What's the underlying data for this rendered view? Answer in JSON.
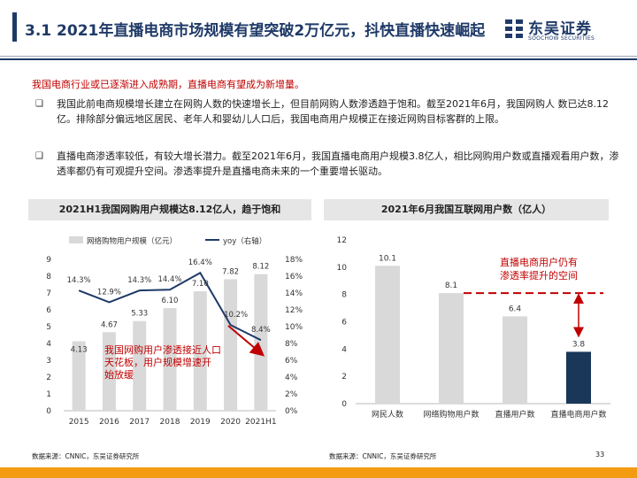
{
  "header": {
    "title": "3.1 2021年直播电商市场规模有望突破2万亿元，抖快直播快速崛起",
    "logo_cn": "东吴证券",
    "logo_en": "SOOCHOW SECURITIES"
  },
  "intro": "我国电商行业或已逐渐进入成熟期，直播电商有望成为新增量。",
  "bullets": [
    {
      "mark": "❑",
      "text": "我国此前电商规模增长建立在网购人数的快速增长上，但目前网购人数渗透趋于饱和。截至2021年6月，我国网购人 数已达8.12亿。排除部分偏远地区居民、老年人和婴幼儿人口后，我国电商用户规模正在接近网购目标客群的上限。"
    },
    {
      "mark": "❑",
      "text": "直播电商渗透率较低，有较大增长潜力。截至2021年6月，我国直播电商用户规模3.8亿人，相比网购用户数或直播观看用户数，渗透率都仍有可观提升空间。渗透率提升是直播电商未来的一个重要增长驱动。"
    }
  ],
  "left_panel": {
    "heading": "2021H1我国网购用户规模达8.12亿人，趋于饱和",
    "source": "数据来源：CNNIC，东吴证券研究所"
  },
  "right_panel": {
    "heading": "2021年6月我国互联网用户数（亿人）",
    "source": "数据来源：CNNIC，东吴证券研究所"
  },
  "page_number": "33",
  "colors": {
    "navy": "#1f3a68",
    "bar_gray": "#d9d9d9",
    "red": "#c00000",
    "orange": "#f39c12",
    "dark_bar": "#1a3658"
  },
  "chart_data": [
    {
      "type": "bar+line",
      "categories": [
        "2015",
        "2016",
        "2017",
        "2018",
        "2019",
        "2020",
        "2021H1"
      ],
      "series": [
        {
          "name": "网络购物用户规模（亿元）",
          "type": "bar",
          "axis": "left",
          "values": [
            4.13,
            4.67,
            5.33,
            6.1,
            7.1,
            7.82,
            8.12
          ],
          "labels": [
            "4.13",
            "4.67",
            "5.33",
            "6.10",
            "7.10",
            "7.82",
            "8.12"
          ]
        },
        {
          "name": "yoy（右轴）",
          "type": "line",
          "axis": "right",
          "values": [
            14.3,
            12.9,
            14.3,
            14.4,
            16.4,
            10.2,
            8.4
          ],
          "labels": [
            "14.3%",
            "12.9%",
            "14.3%",
            "14.4%",
            "16.4%",
            "10.2%",
            "8.4%"
          ]
        }
      ],
      "yleft": {
        "min": 0,
        "max": 9,
        "ticks": [
          "0",
          "1",
          "2",
          "3",
          "4",
          "5",
          "6",
          "7",
          "8",
          "9"
        ]
      },
      "yright": {
        "min": 0,
        "max": 18,
        "ticks": [
          "0%",
          "2%",
          "4%",
          "6%",
          "8%",
          "10%",
          "12%",
          "14%",
          "16%",
          "18%"
        ]
      },
      "annotation": "我国网购用户渗透接近人口天花板，用户规模增速开始放缓",
      "legend": "top-left"
    },
    {
      "type": "bar",
      "categories": [
        "网民人数",
        "网络购物用户数",
        "直播用户数",
        "直播电商用户数"
      ],
      "values": [
        10.1,
        8.1,
        6.4,
        3.8
      ],
      "labels": [
        "10.1",
        "8.1",
        "6.4",
        "3.8"
      ],
      "ylim": [
        0,
        12
      ],
      "yticks": [
        "0",
        "2",
        "4",
        "6",
        "8",
        "10",
        "12"
      ],
      "annotation": "直播电商用户仍有渗透率提升的空间",
      "reference_line": 8.1
    }
  ]
}
